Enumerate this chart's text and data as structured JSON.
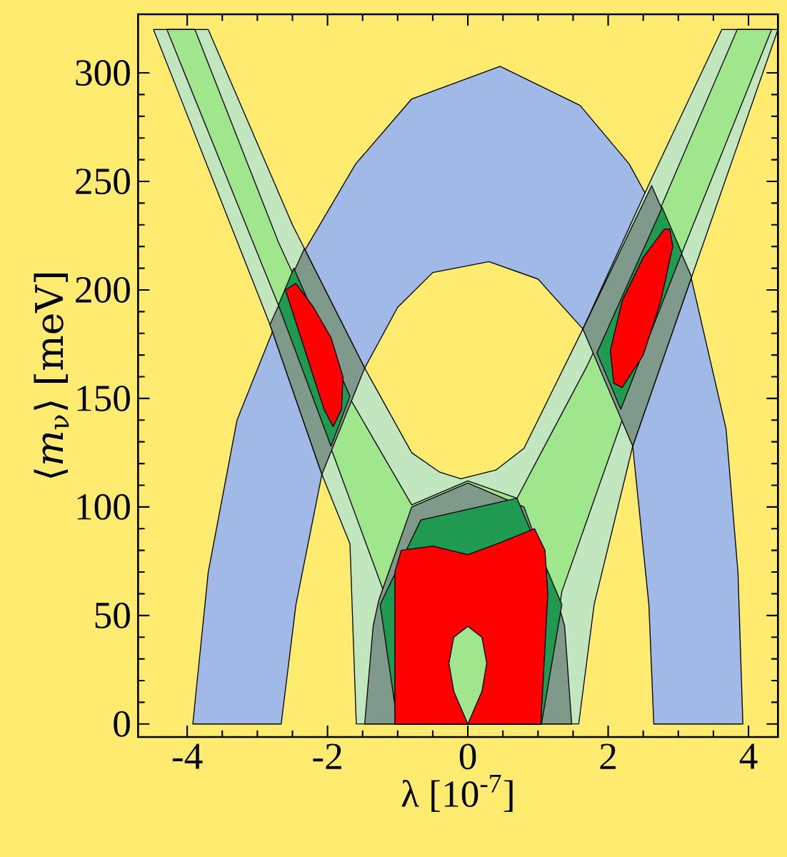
{
  "chart_data": {
    "type": "area",
    "xlabel": "λ [10$^{-7}$]",
    "ylabel": "⟨*m*$_{ν}$⟩ [meV]",
    "xlim": [
      -4.7,
      4.42
    ],
    "ylim": [
      -6,
      327
    ],
    "xticks": [
      -4,
      -2,
      0,
      2,
      4
    ],
    "yticks": [
      0,
      50,
      100,
      150,
      200,
      250,
      300
    ],
    "grid": false,
    "series": [
      {
        "color": "#a0b9e6",
        "x": [
          -3.92,
          -3.7,
          -3.29,
          -2.31,
          -1.6,
          -0.8,
          0.46,
          1.6,
          2.3,
          3.18,
          3.68,
          3.85,
          3.92,
          2.65,
          2.58,
          2.35,
          1.64,
          1.0,
          0.3,
          -0.5,
          -1.0,
          -1.47,
          -2.08,
          -2.45,
          -2.66
        ],
        "values": [
          0,
          70,
          140,
          219,
          258,
          288,
          303,
          285,
          258,
          206,
          136,
          70,
          0,
          0,
          55,
          128,
          182,
          205,
          213,
          208,
          192,
          164,
          115,
          55,
          0
        ]
      },
      {
        "color": "#c2e6be",
        "x": [
          -4.48,
          -2.82,
          -2.08,
          -1.68,
          -1.59,
          1.58,
          1.8,
          2.35,
          3.19,
          4.42,
          3.62,
          2.6,
          1.64,
          0.8,
          0.4,
          -0.1,
          -0.4,
          -0.8,
          -1.47,
          -2.5,
          -3.7
        ],
        "values": [
          320,
          184,
          115,
          83,
          0,
          0,
          55,
          128,
          206,
          320,
          320,
          250,
          182,
          127,
          117,
          113,
          116,
          125,
          164,
          230,
          320
        ]
      },
      {
        "color": "#a0e68c",
        "x": [
          -4.29,
          -2.7,
          -1.95,
          -1.21,
          -1.0,
          1.05,
          1.34,
          2.2,
          3.05,
          4.33,
          3.84,
          2.75,
          1.7,
          0.7,
          0,
          -0.8,
          -1.68,
          -2.7,
          -3.89
        ],
        "values": [
          320,
          193,
          127,
          62,
          0,
          0,
          61,
          140,
          217,
          320,
          320,
          238,
          165,
          104,
          112,
          101,
          150,
          222,
          320
        ]
      },
      {
        "color": "#7f9a8a",
        "x": [
          -2.33,
          -2.82,
          -2.08,
          -1.47
        ],
        "values": [
          219,
          184,
          115,
          164
        ]
      },
      {
        "color": "#7f9a8a",
        "x": [
          2.62,
          3.19,
          2.35,
          1.64
        ],
        "values": [
          248,
          206,
          128,
          182
        ]
      },
      {
        "color": "#7f9a8a",
        "x": [
          -1.47,
          -1.35,
          -1.27,
          -0.8,
          0,
          0.8,
          1.25,
          1.38,
          1.48
        ],
        "values": [
          0,
          45,
          57,
          100,
          111,
          100,
          60,
          45,
          0
        ]
      },
      {
        "color": "#1f9a50",
        "x": [
          -2.48,
          -2.7,
          -1.95,
          -1.68
        ],
        "values": [
          210,
          193,
          128,
          151
        ]
      },
      {
        "color": "#1f9a50",
        "x": [
          2.77,
          3.05,
          2.18,
          1.84
        ],
        "values": [
          238,
          217,
          145,
          171
        ]
      },
      {
        "color": "#1f9a50",
        "x": [
          -1.0,
          -1.25,
          -0.67,
          0.7,
          1.34,
          1.05
        ],
        "values": [
          0,
          55,
          94,
          104,
          55,
          0
        ]
      },
      {
        "color": "#ff0000",
        "x": [
          -1.04,
          -1.04,
          -0.95,
          -0.5,
          0,
          0.5,
          0.95,
          1.1,
          1.14,
          1.04
        ],
        "values": [
          0,
          70,
          80,
          82,
          78,
          84,
          90,
          80,
          60,
          0
        ]
      },
      {
        "color": "#a0e68c",
        "x": [
          0,
          -0.2,
          -0.27,
          -0.2,
          0,
          0.2,
          0.27,
          0.2
        ],
        "values": [
          0,
          15,
          28,
          40,
          45,
          40,
          28,
          15
        ]
      },
      {
        "color": "#ff0000",
        "x": [
          -2.6,
          -2.45,
          -2.25,
          -2.05,
          -1.92,
          -1.8,
          -1.78,
          -1.95,
          -2.2,
          -2.45
        ],
        "values": [
          200,
          185,
          165,
          145,
          137,
          145,
          160,
          178,
          192,
          203
        ]
      },
      {
        "color": "#ff0000",
        "x": [
          2.88,
          2.92,
          2.75,
          2.5,
          2.2,
          2.08,
          2.03,
          2.2,
          2.5,
          2.8
        ],
        "values": [
          228,
          220,
          195,
          170,
          155,
          157,
          172,
          195,
          215,
          228
        ]
      }
    ]
  }
}
